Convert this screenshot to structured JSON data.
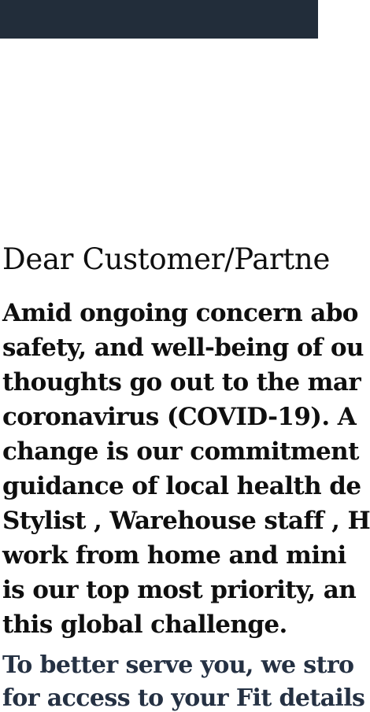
{
  "header": {
    "bar_color": "#222d3a"
  },
  "notice": {
    "title": "Dear Customer/Partne",
    "paragraph1": [
      "Amid ongoing concern abo",
      "safety, and well-being of ou",
      "thoughts go out to the mar",
      "coronavirus (COVID-19). A",
      "change is our commitment",
      "guidance of local health de",
      "Stylist , Warehouse staff , H",
      "work from home and mini",
      "is our top most priority, an",
      "this global challenge."
    ],
    "paragraph2": [
      "To better serve you, we stro",
      "for access to your Fit details"
    ]
  }
}
